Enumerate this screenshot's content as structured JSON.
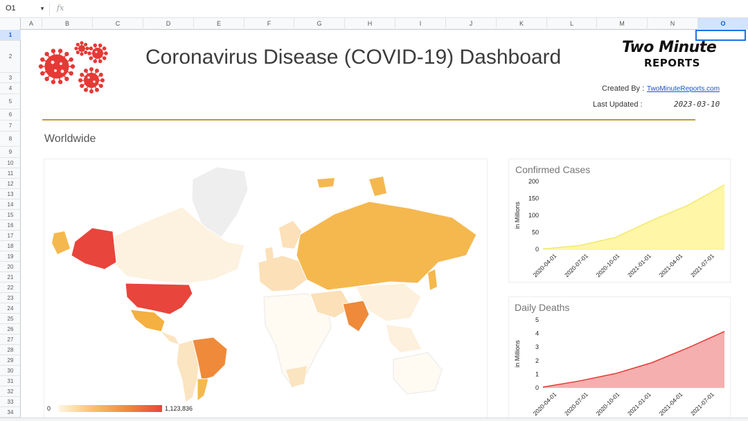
{
  "formula_bar": {
    "name_box": "O1",
    "fx_label": "fx",
    "formula": ""
  },
  "columns": [
    "A",
    "B",
    "C",
    "D",
    "E",
    "F",
    "G",
    "H",
    "I",
    "J",
    "K",
    "L",
    "M",
    "N",
    "O"
  ],
  "selected_column": "O",
  "rows": [
    "1",
    "2",
    "3",
    "4",
    "5",
    "6",
    "7",
    "8",
    "9",
    "10",
    "11",
    "12",
    "13",
    "14",
    "15",
    "16",
    "17",
    "18",
    "19",
    "20",
    "21",
    "22",
    "23",
    "24",
    "25",
    "26",
    "27",
    "28",
    "29",
    "30",
    "31",
    "32",
    "33",
    "34"
  ],
  "selected_row": "1",
  "dashboard": {
    "title": "Coronavirus Disease (COVID-19) Dashboard",
    "logo_line1": "Two Minute",
    "logo_line2": "REPORTS",
    "created_by_label": "Created By :",
    "created_by_value": "TwoMinuteReports.com",
    "last_updated_label": "Last Updated :",
    "last_updated_value": "2023-03-10",
    "section_title": "Worldwide",
    "accent_color": "#c8962a"
  },
  "map": {
    "legend_min": "0",
    "legend_max": "1,123,836",
    "color_scale": [
      "#fff6e5",
      "#f8c26a",
      "#f08a3a",
      "#e8453c"
    ]
  },
  "chart_data": [
    {
      "type": "area",
      "title": "Confirmed Cases",
      "ylabel": "in Millions",
      "x": [
        "2020-04-01",
        "2020-07-01",
        "2020-10-01",
        "2021-01-01",
        "2021-04-01",
        "2021-07-01"
      ],
      "x_ticks": [
        "2020-04-01",
        "2020-07-01",
        "2020-10-01",
        "2021-01-01",
        "2021-04-01",
        "2021-07-01"
      ],
      "values": [
        1,
        11,
        35,
        85,
        130,
        190
      ],
      "ylim": [
        0,
        200
      ],
      "y_ticks": [
        0,
        50,
        100,
        150,
        200
      ],
      "color": "#fff59d",
      "line_color": "#f2e873"
    },
    {
      "type": "area",
      "title": "Daily Deaths",
      "ylabel": "in Millions",
      "x": [
        "2020-04-01",
        "2020-07-01",
        "2020-10-01",
        "2021-01-01",
        "2021-04-01",
        "2021-07-01"
      ],
      "x_ticks": [
        "2020-04-01",
        "2020-07-01",
        "2020-10-01",
        "2021-01-01",
        "2021-04-01",
        "2021-07-01"
      ],
      "values": [
        0.05,
        0.5,
        1.05,
        1.85,
        2.95,
        4.15
      ],
      "ylim": [
        0,
        5
      ],
      "y_ticks": [
        0,
        1,
        2,
        3,
        4,
        5
      ],
      "color": "#f4a6a6",
      "line_color": "#e53935"
    }
  ]
}
